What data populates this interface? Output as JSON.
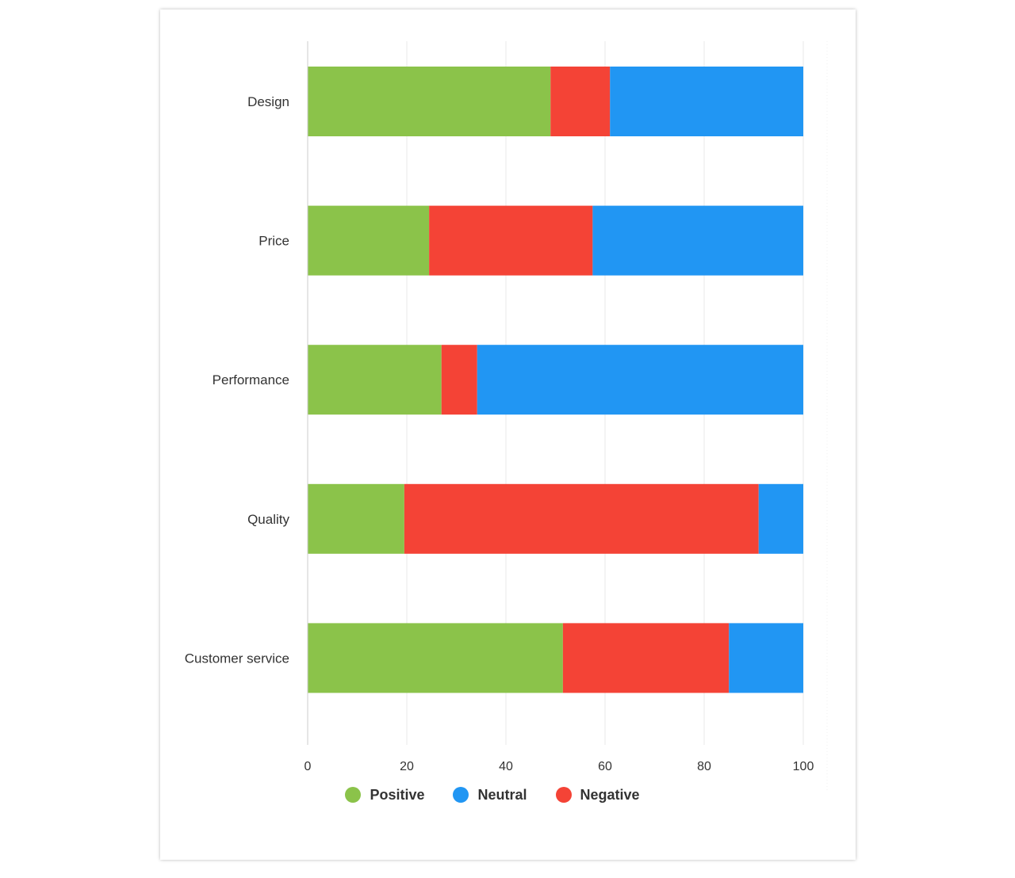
{
  "chart_data": {
    "type": "bar",
    "orientation": "horizontal",
    "stacked": true,
    "categories": [
      "Design",
      "Price",
      "Performance",
      "Quality",
      "Customer service"
    ],
    "series": [
      {
        "name": "Positive",
        "color": "#8bc34a",
        "values": [
          49,
          24.5,
          27,
          19.5,
          51.5
        ]
      },
      {
        "name": "Negative",
        "color": "#f44336",
        "values": [
          12,
          33,
          7.2,
          71.5,
          33.5
        ]
      },
      {
        "name": "Neutral",
        "color": "#2196f3",
        "values": [
          39,
          42.5,
          65.8,
          9,
          15
        ]
      }
    ],
    "xticks": [
      "0",
      "20",
      "40",
      "60",
      "80",
      "100"
    ],
    "xlim": [
      0,
      100
    ],
    "grid": true,
    "legend_position": "bottom",
    "legend": [
      {
        "name": "Positive",
        "color": "#8bc34a"
      },
      {
        "name": "Neutral",
        "color": "#2196f3"
      },
      {
        "name": "Negative",
        "color": "#f44336"
      }
    ]
  }
}
